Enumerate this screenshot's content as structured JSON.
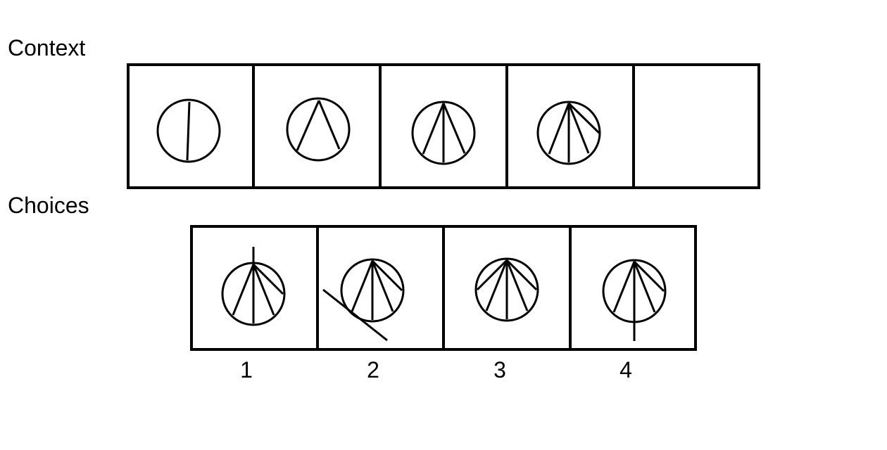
{
  "labels": {
    "context": "Context",
    "choices": "Choices"
  },
  "choice_numbers": [
    "1",
    "2",
    "3",
    "4"
  ],
  "colors": {
    "stroke": "#000000",
    "background": "#ffffff"
  }
}
